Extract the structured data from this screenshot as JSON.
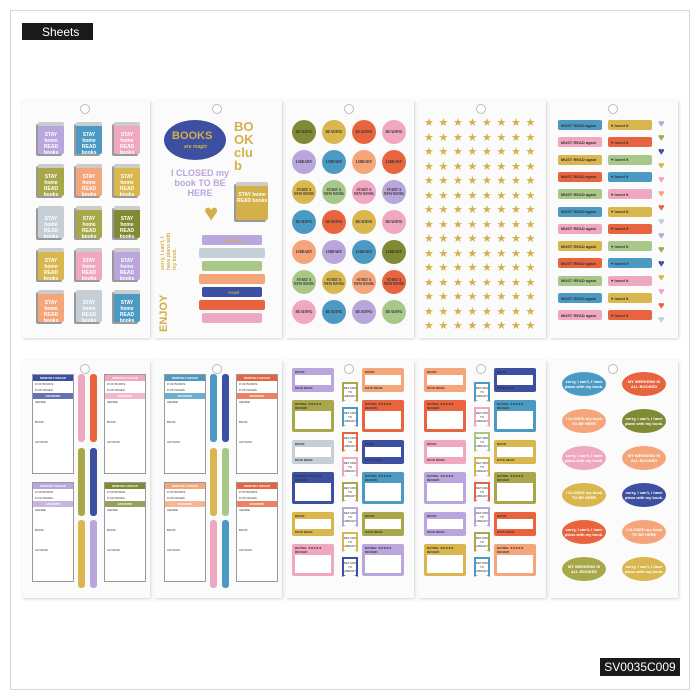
{
  "header": {
    "title": "Sheets"
  },
  "footer": {
    "sku": "SV0035C009"
  },
  "colors": {
    "purple": "#b9a6dc",
    "blue": "#4b9ac4",
    "pink": "#f0a7c2",
    "olive": "#a8a84a",
    "peach": "#f5a57a",
    "mustard": "#d9b74e",
    "grayblue": "#c4cfd8",
    "darkolive": "#7f8a33",
    "red": "#e8643e",
    "navy": "#3c4fa0",
    "green": "#a8c889",
    "gold": "#d4b04a"
  },
  "sheet1": {
    "label": "STAY home READ books",
    "books": [
      "purple",
      "blue",
      "pink",
      "olive",
      "peach",
      "mustard",
      "grayblue",
      "olive",
      "darkolive",
      "mustard",
      "pink",
      "purple",
      "peach",
      "grayblue",
      "blue"
    ]
  },
  "sheet2": {
    "bubble": "BOOKS",
    "bubble_sub": "are magic",
    "club": "BOOK club",
    "closed": "I CLOSED my book TO BE HERE",
    "heart": "hooked all day",
    "book": "STAY home READ books",
    "sorry": "sorry, I can't, I have plans with my book.",
    "enjoy": "ENJOY",
    "spines": [
      {
        "c": "purple",
        "t": "READING"
      },
      {
        "c": "grayblue",
        "t": ""
      },
      {
        "c": "green",
        "t": ""
      },
      {
        "c": "peach",
        "t": ""
      },
      {
        "c": "navy",
        "t": "YOUR"
      },
      {
        "c": "red",
        "t": ""
      },
      {
        "c": "pink",
        "t": ""
      }
    ]
  },
  "sheet3": {
    "dots": [
      [
        "darkolive",
        "READING"
      ],
      [
        "mustard",
        "READING"
      ],
      [
        "red",
        "READING"
      ],
      [
        "pink",
        "READING"
      ],
      [
        "purple",
        "LIBRARY"
      ],
      [
        "blue",
        "LIBRARY"
      ],
      [
        "peach",
        "LIBRARY"
      ],
      [
        "red",
        "LIBRARY"
      ],
      [
        "mustard",
        "START A NEW BOOK"
      ],
      [
        "green",
        "START A NEW BOOK"
      ],
      [
        "pink",
        "START A NEW BOOK"
      ],
      [
        "purple",
        "START A NEW BOOK"
      ],
      [
        "blue",
        "READING"
      ],
      [
        "red",
        "READING"
      ],
      [
        "mustard",
        "READING"
      ],
      [
        "pink",
        "READING"
      ],
      [
        "peach",
        "LIBRARY"
      ],
      [
        "purple",
        "LIBRARY"
      ],
      [
        "blue",
        "LIBRARY"
      ],
      [
        "darkolive",
        "LIBRARY"
      ],
      [
        "green",
        "START A NEW BOOK"
      ],
      [
        "mustard",
        "START A NEW BOOK"
      ],
      [
        "peach",
        "START A NEW BOOK"
      ],
      [
        "red",
        "START A NEW BOOK"
      ],
      [
        "pink",
        "READING"
      ],
      [
        "blue",
        "READING"
      ],
      [
        "purple",
        "READING"
      ],
      [
        "green",
        "READING"
      ]
    ]
  },
  "sheet4": {
    "star": "★"
  },
  "sheet5": {
    "must": "MUST READ again",
    "loved": "♥ loved it",
    "left": [
      "blue",
      "pink",
      "mustard",
      "red",
      "green",
      "blue",
      "pink",
      "mustard",
      "red",
      "green",
      "blue",
      "pink"
    ],
    "right": [
      "mustard",
      "red",
      "green",
      "blue",
      "pink",
      "mustard",
      "red",
      "green",
      "blue",
      "pink",
      "mustard",
      "red"
    ],
    "hearts": [
      "purple",
      "olive",
      "navy",
      "mustard",
      "pink",
      "peach",
      "red",
      "grayblue",
      "purple",
      "olive",
      "navy",
      "mustard",
      "pink",
      "red",
      "grayblue"
    ]
  },
  "recap": {
    "title": "MONTHLY RECAP",
    "books": "# OF BOOKS:",
    "pages": "# OF PAGES:",
    "fav": "FAVORITE",
    "genre": "GENRE:",
    "book": "BOOK:",
    "author": "AUTHOR:"
  },
  "review": {
    "book": "BOOK:",
    "date": "DATE READ:",
    "rating": "RATING: ★★★★★",
    "review": "REVIEW:",
    "flag": "RETURN TO LIBRARY"
  },
  "bubbles": {
    "sorry": "sorry, I can't, I have plans with my book.",
    "weekend": "MY WEEKEND IS ALL BOOKED",
    "closed": "I CLOSED my book TO BE HERE"
  }
}
